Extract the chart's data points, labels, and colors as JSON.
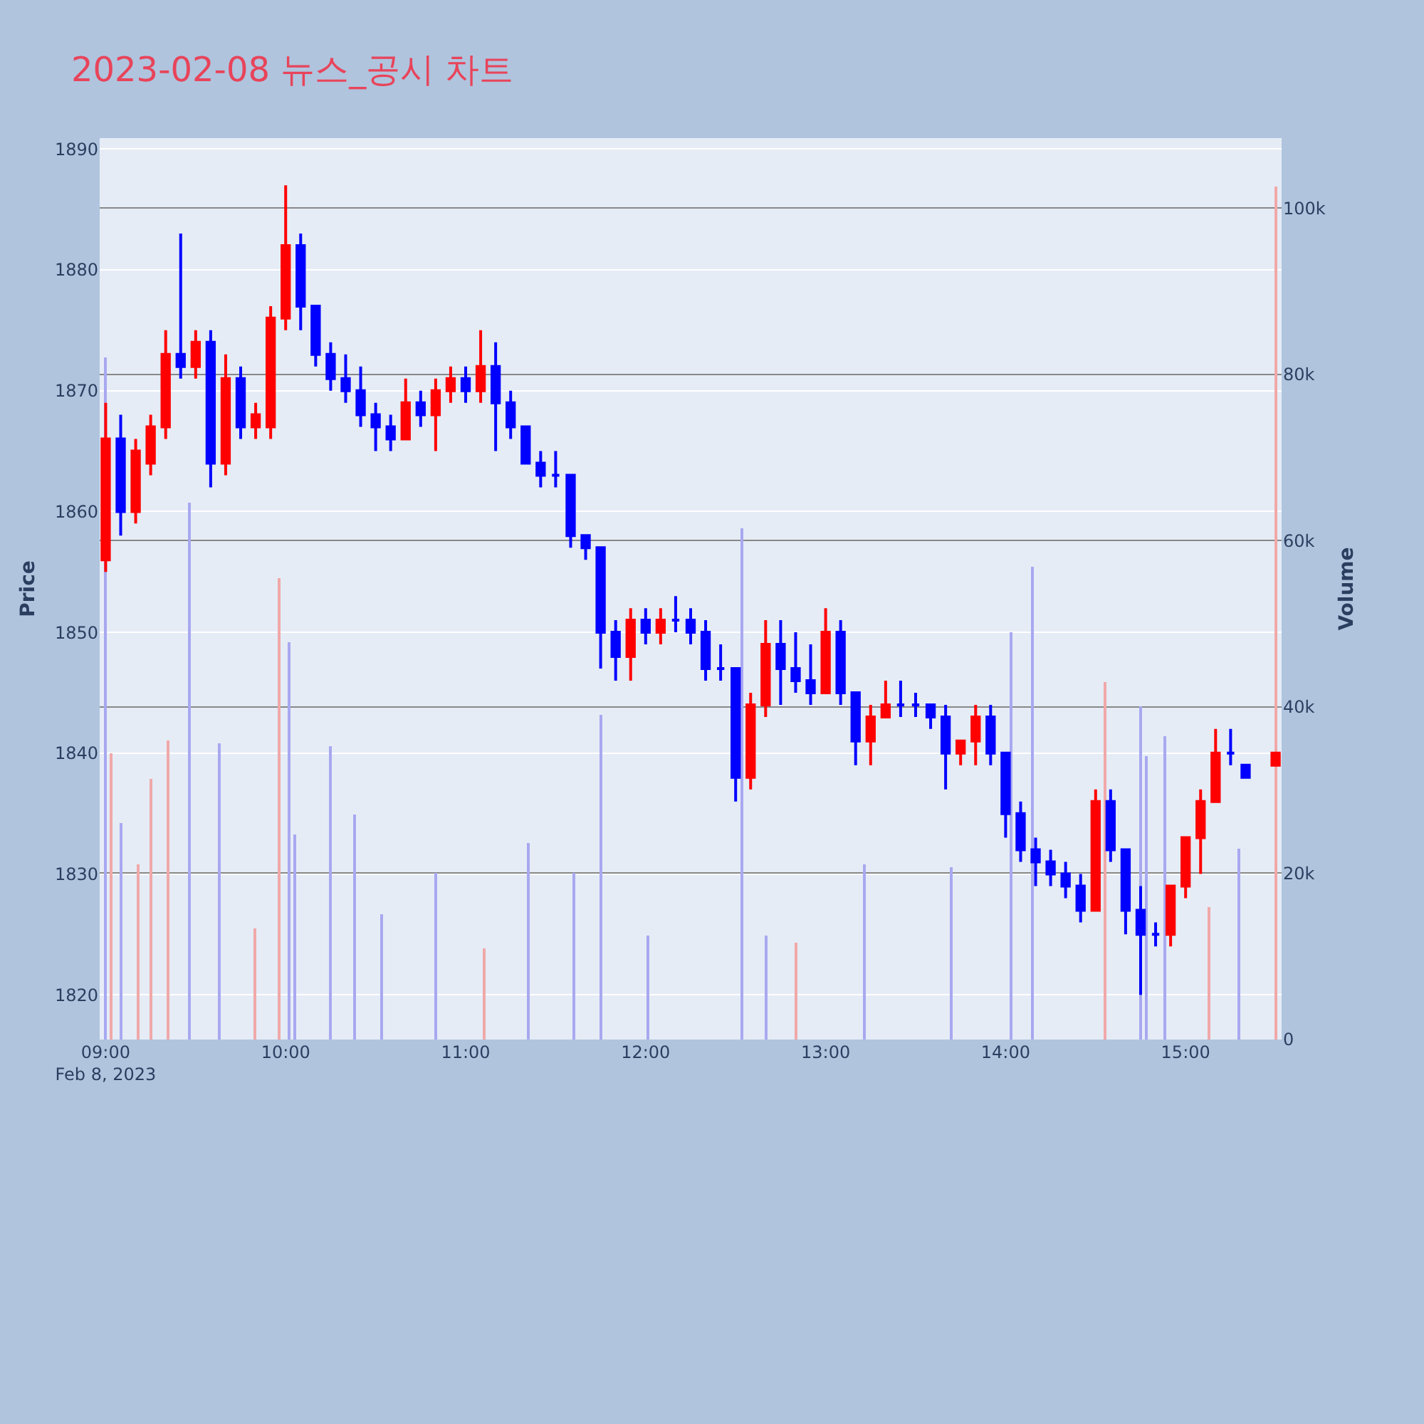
{
  "chart_data": {
    "type": "candlestick",
    "title": "2023-02-08 뉴스_공시 차트",
    "ylabel": "Price",
    "y2label": "Volume",
    "grid": "y",
    "xlim": [
      "2023-02-08T08:58",
      "2023-02-08T15:32"
    ],
    "xticks": [
      {
        "value": "2023-02-08T09:00",
        "label": "09:00\nFeb 8, 2023"
      },
      {
        "value": "2023-02-08T10:00",
        "label": "10:00"
      },
      {
        "value": "2023-02-08T11:00",
        "label": "11:00"
      },
      {
        "value": "2023-02-08T12:00",
        "label": "12:00"
      },
      {
        "value": "2023-02-08T13:00",
        "label": "13:00"
      },
      {
        "value": "2023-02-08T14:00",
        "label": "14:00"
      },
      {
        "value": "2023-02-08T15:00",
        "label": "15:00"
      }
    ],
    "ylim": [
      1816.3,
      1890.9
    ],
    "yticks": [
      1820,
      1830,
      1840,
      1850,
      1860,
      1870,
      1880,
      1890
    ],
    "y2lim": [
      0,
      108400
    ],
    "y2ticks": [
      0,
      {
        "value": 20000,
        "label": "20k"
      },
      {
        "value": 40000,
        "label": "40k"
      },
      {
        "value": 60000,
        "label": "60k"
      },
      {
        "value": 80000,
        "label": "80k"
      },
      {
        "value": 100000,
        "label": "100k"
      }
    ],
    "series": [
      {
        "x": [
          "2023-02-08T09:00",
          "2023-02-08T09:05",
          "2023-02-08T09:10",
          "2023-02-08T09:15",
          "2023-02-08T09:20",
          "2023-02-08T09:25",
          "2023-02-08T09:30",
          "2023-02-08T09:35",
          "2023-02-08T09:40",
          "2023-02-08T09:45",
          "2023-02-08T09:50",
          "2023-02-08T09:55",
          "2023-02-08T10:00",
          "2023-02-08T10:05",
          "2023-02-08T10:10",
          "2023-02-08T10:15",
          "2023-02-08T10:20",
          "2023-02-08T10:25",
          "2023-02-08T10:30",
          "2023-02-08T10:35",
          "2023-02-08T10:40",
          "2023-02-08T10:45",
          "2023-02-08T10:50",
          "2023-02-08T10:55",
          "2023-02-08T11:00",
          "2023-02-08T11:05",
          "2023-02-08T11:10",
          "2023-02-08T11:15",
          "2023-02-08T11:20",
          "2023-02-08T11:25",
          "2023-02-08T11:30",
          "2023-02-08T11:35",
          "2023-02-08T11:40",
          "2023-02-08T11:45",
          "2023-02-08T11:50",
          "2023-02-08T11:55",
          "2023-02-08T12:00",
          "2023-02-08T12:05",
          "2023-02-08T12:10",
          "2023-02-08T12:15",
          "2023-02-08T12:20",
          "2023-02-08T12:25",
          "2023-02-08T12:30",
          "2023-02-08T12:35",
          "2023-02-08T12:40",
          "2023-02-08T12:45",
          "2023-02-08T12:50",
          "2023-02-08T12:55",
          "2023-02-08T13:00",
          "2023-02-08T13:05",
          "2023-02-08T13:10",
          "2023-02-08T13:15",
          "2023-02-08T13:20",
          "2023-02-08T13:25",
          "2023-02-08T13:30",
          "2023-02-08T13:35",
          "2023-02-08T13:40",
          "2023-02-08T13:45",
          "2023-02-08T13:50",
          "2023-02-08T13:55",
          "2023-02-08T14:00",
          "2023-02-08T14:05",
          "2023-02-08T14:10",
          "2023-02-08T14:15",
          "2023-02-08T14:20",
          "2023-02-08T14:25",
          "2023-02-08T14:30",
          "2023-02-08T14:35",
          "2023-02-08T14:40",
          "2023-02-08T14:45",
          "2023-02-08T14:50",
          "2023-02-08T14:55",
          "2023-02-08T15:00",
          "2023-02-08T15:05",
          "2023-02-08T15:10",
          "2023-02-08T15:15",
          "2023-02-08T15:20",
          "2023-02-08T15:30"
        ],
        "ohlc": [
          [
            1856,
            1869,
            1855,
            1866
          ],
          [
            1866,
            1868,
            1858,
            1860
          ],
          [
            1860,
            1866,
            1859,
            1865
          ],
          [
            1864,
            1868,
            1863,
            1867
          ],
          [
            1867,
            1875,
            1866,
            1873
          ],
          [
            1873,
            1883,
            1871,
            1872
          ],
          [
            1872,
            1875,
            1871,
            1874
          ],
          [
            1874,
            1875,
            1862,
            1864
          ],
          [
            1864,
            1873,
            1863,
            1871
          ],
          [
            1871,
            1872,
            1866,
            1867
          ],
          [
            1867,
            1869,
            1866,
            1868
          ],
          [
            1867,
            1877,
            1866,
            1876
          ],
          [
            1876,
            1887,
            1875,
            1882
          ],
          [
            1882,
            1883,
            1875,
            1877
          ],
          [
            1877,
            1877,
            1872,
            1873
          ],
          [
            1873,
            1874,
            1870,
            1871
          ],
          [
            1871,
            1873,
            1869,
            1870
          ],
          [
            1870,
            1872,
            1867,
            1868
          ],
          [
            1868,
            1869,
            1865,
            1867
          ],
          [
            1867,
            1868,
            1865,
            1866
          ],
          [
            1866,
            1871,
            1866,
            1869
          ],
          [
            1869,
            1870,
            1867,
            1868
          ],
          [
            1868,
            1871,
            1865,
            1870
          ],
          [
            1870,
            1872,
            1869,
            1871
          ],
          [
            1871,
            1872,
            1869,
            1870
          ],
          [
            1870,
            1875,
            1869,
            1872
          ],
          [
            1872,
            1874,
            1865,
            1869
          ],
          [
            1869,
            1870,
            1866,
            1867
          ],
          [
            1867,
            1867,
            1864,
            1864
          ],
          [
            1864,
            1865,
            1862,
            1863
          ],
          [
            1863,
            1865,
            1862,
            1863
          ],
          [
            1863,
            1863,
            1857,
            1858
          ],
          [
            1858,
            1858,
            1856,
            1857
          ],
          [
            1857,
            1857,
            1847,
            1850
          ],
          [
            1850,
            1851,
            1846,
            1848
          ],
          [
            1848,
            1852,
            1846,
            1851
          ],
          [
            1851,
            1852,
            1849,
            1850
          ],
          [
            1850,
            1852,
            1849,
            1851
          ],
          [
            1851,
            1853,
            1850,
            1851
          ],
          [
            1851,
            1852,
            1849,
            1850
          ],
          [
            1850,
            1851,
            1846,
            1847
          ],
          [
            1847,
            1849,
            1846,
            1847
          ],
          [
            1847,
            1847,
            1836,
            1838
          ],
          [
            1838,
            1845,
            1837,
            1844
          ],
          [
            1844,
            1851,
            1843,
            1849
          ],
          [
            1849,
            1851,
            1844,
            1847
          ],
          [
            1847,
            1850,
            1845,
            1846
          ],
          [
            1846,
            1849,
            1844,
            1845
          ],
          [
            1845,
            1852,
            1845,
            1850
          ],
          [
            1850,
            1851,
            1844,
            1845
          ],
          [
            1845,
            1845,
            1839,
            1841
          ],
          [
            1841,
            1844,
            1839,
            1843
          ],
          [
            1843,
            1846,
            1843,
            1844
          ],
          [
            1844,
            1846,
            1843,
            1844
          ],
          [
            1844,
            1845,
            1843,
            1844
          ],
          [
            1844,
            1844,
            1842,
            1843
          ],
          [
            1843,
            1844,
            1837,
            1840
          ],
          [
            1840,
            1841,
            1839,
            1841
          ],
          [
            1841,
            1844,
            1839,
            1843
          ],
          [
            1843,
            1844,
            1839,
            1840
          ],
          [
            1840,
            1840,
            1833,
            1835
          ],
          [
            1835,
            1836,
            1831,
            1832
          ],
          [
            1832,
            1833,
            1829,
            1831
          ],
          [
            1831,
            1832,
            1829,
            1830
          ],
          [
            1830,
            1831,
            1828,
            1829
          ],
          [
            1829,
            1830,
            1826,
            1827
          ],
          [
            1827,
            1837,
            1827,
            1836
          ],
          [
            1836,
            1837,
            1831,
            1832
          ],
          [
            1832,
            1832,
            1825,
            1827
          ],
          [
            1827,
            1829,
            1820,
            1825
          ],
          [
            1825,
            1826,
            1824,
            1825
          ],
          [
            1825,
            1829,
            1824,
            1829
          ],
          [
            1829,
            1833,
            1828,
            1833
          ],
          [
            1833,
            1837,
            1830,
            1836
          ],
          [
            1836,
            1842,
            1836,
            1840
          ],
          [
            1840,
            1842,
            1839,
            1840
          ],
          [
            1839,
            1839,
            1838,
            1838
          ],
          [
            1839,
            1840,
            1839,
            1840
          ]
        ],
        "colors": [
          "#ff0000",
          "#0000ff",
          "#ff0000",
          "#ff0000",
          "#ff0000",
          "#0000ff",
          "#ff0000",
          "#0000ff",
          "#ff0000",
          "#0000ff",
          "#ff0000",
          "#ff0000",
          "#ff0000",
          "#0000ff",
          "#0000ff",
          "#0000ff",
          "#0000ff",
          "#0000ff",
          "#0000ff",
          "#0000ff",
          "#ff0000",
          "#0000ff",
          "#ff0000",
          "#ff0000",
          "#0000ff",
          "#ff0000",
          "#0000ff",
          "#0000ff",
          "#0000ff",
          "#0000ff",
          "#0000ff",
          "#0000ff",
          "#0000ff",
          "#0000ff",
          "#0000ff",
          "#ff0000",
          "#0000ff",
          "#ff0000",
          "#0000ff",
          "#0000ff",
          "#0000ff",
          "#0000ff",
          "#0000ff",
          "#ff0000",
          "#ff0000",
          "#0000ff",
          "#0000ff",
          "#0000ff",
          "#ff0000",
          "#0000ff",
          "#0000ff",
          "#ff0000",
          "#ff0000",
          "#0000ff",
          "#0000ff",
          "#0000ff",
          "#0000ff",
          "#ff0000",
          "#ff0000",
          "#0000ff",
          "#0000ff",
          "#0000ff",
          "#0000ff",
          "#0000ff",
          "#0000ff",
          "#0000ff",
          "#ff0000",
          "#0000ff",
          "#0000ff",
          "#0000ff",
          "#0000ff",
          "#ff0000",
          "#ff0000",
          "#ff0000",
          "#ff0000",
          "#0000ff",
          "#0000ff",
          "#ff0000"
        ]
      },
      {
        "type": "bar",
        "axis": "y2",
        "x": [
          "2023-02-08T09:00",
          "2023-02-08T09:02",
          "2023-02-08T09:05",
          "2023-02-08T09:11",
          "2023-02-08T09:15",
          "2023-02-08T09:21",
          "2023-02-08T09:28",
          "2023-02-08T09:38",
          "2023-02-08T09:50",
          "2023-02-08T09:58",
          "2023-02-08T10:01",
          "2023-02-08T10:03",
          "2023-02-08T10:15",
          "2023-02-08T10:23",
          "2023-02-08T10:32",
          "2023-02-08T10:50",
          "2023-02-08T11:06",
          "2023-02-08T11:21",
          "2023-02-08T11:36",
          "2023-02-08T11:45",
          "2023-02-08T12:01",
          "2023-02-08T12:32",
          "2023-02-08T12:40",
          "2023-02-08T12:50",
          "2023-02-08T13:13",
          "2023-02-08T13:42",
          "2023-02-08T14:02",
          "2023-02-08T14:09",
          "2023-02-08T14:33",
          "2023-02-08T14:45",
          "2023-02-08T14:47",
          "2023-02-08T14:53",
          "2023-02-08T15:08",
          "2023-02-08T15:18",
          "2023-02-08T15:30"
        ],
        "values": [
          82000,
          34500,
          26000,
          21000,
          31400,
          36000,
          64600,
          35600,
          13400,
          55500,
          47800,
          24600,
          35200,
          27000,
          15000,
          20000,
          11000,
          23700,
          20000,
          39000,
          12500,
          61500,
          12500,
          11700,
          21000,
          20800,
          49000,
          56900,
          43000,
          40000,
          34000,
          36400,
          16000,
          23000,
          102600
        ],
        "colors": [
          "#a8a8f0",
          "#f0a8a8",
          "#a8a8f0",
          "#f0a8a8",
          "#f0a8a8",
          "#f0a8a8",
          "#a8a8f0",
          "#a8a8f0",
          "#f0a8a8",
          "#f0a8a8",
          "#a8a8f0",
          "#a8a8f0",
          "#a8a8f0",
          "#a8a8f0",
          "#a8a8f0",
          "#a8a8f0",
          "#f0a8a8",
          "#a8a8f0",
          "#a8a8f0",
          "#a8a8f0",
          "#a8a8f0",
          "#a8a8f0",
          "#a8a8f0",
          "#f0a8a8",
          "#a8a8f0",
          "#a8a8f0",
          "#a8a8f0",
          "#a8a8f0",
          "#f0a8a8",
          "#a8a8f0",
          "#a8a8f0",
          "#a8a8f0",
          "#f0a8a8",
          "#a8a8f0",
          "#f0a8a8"
        ]
      }
    ]
  }
}
